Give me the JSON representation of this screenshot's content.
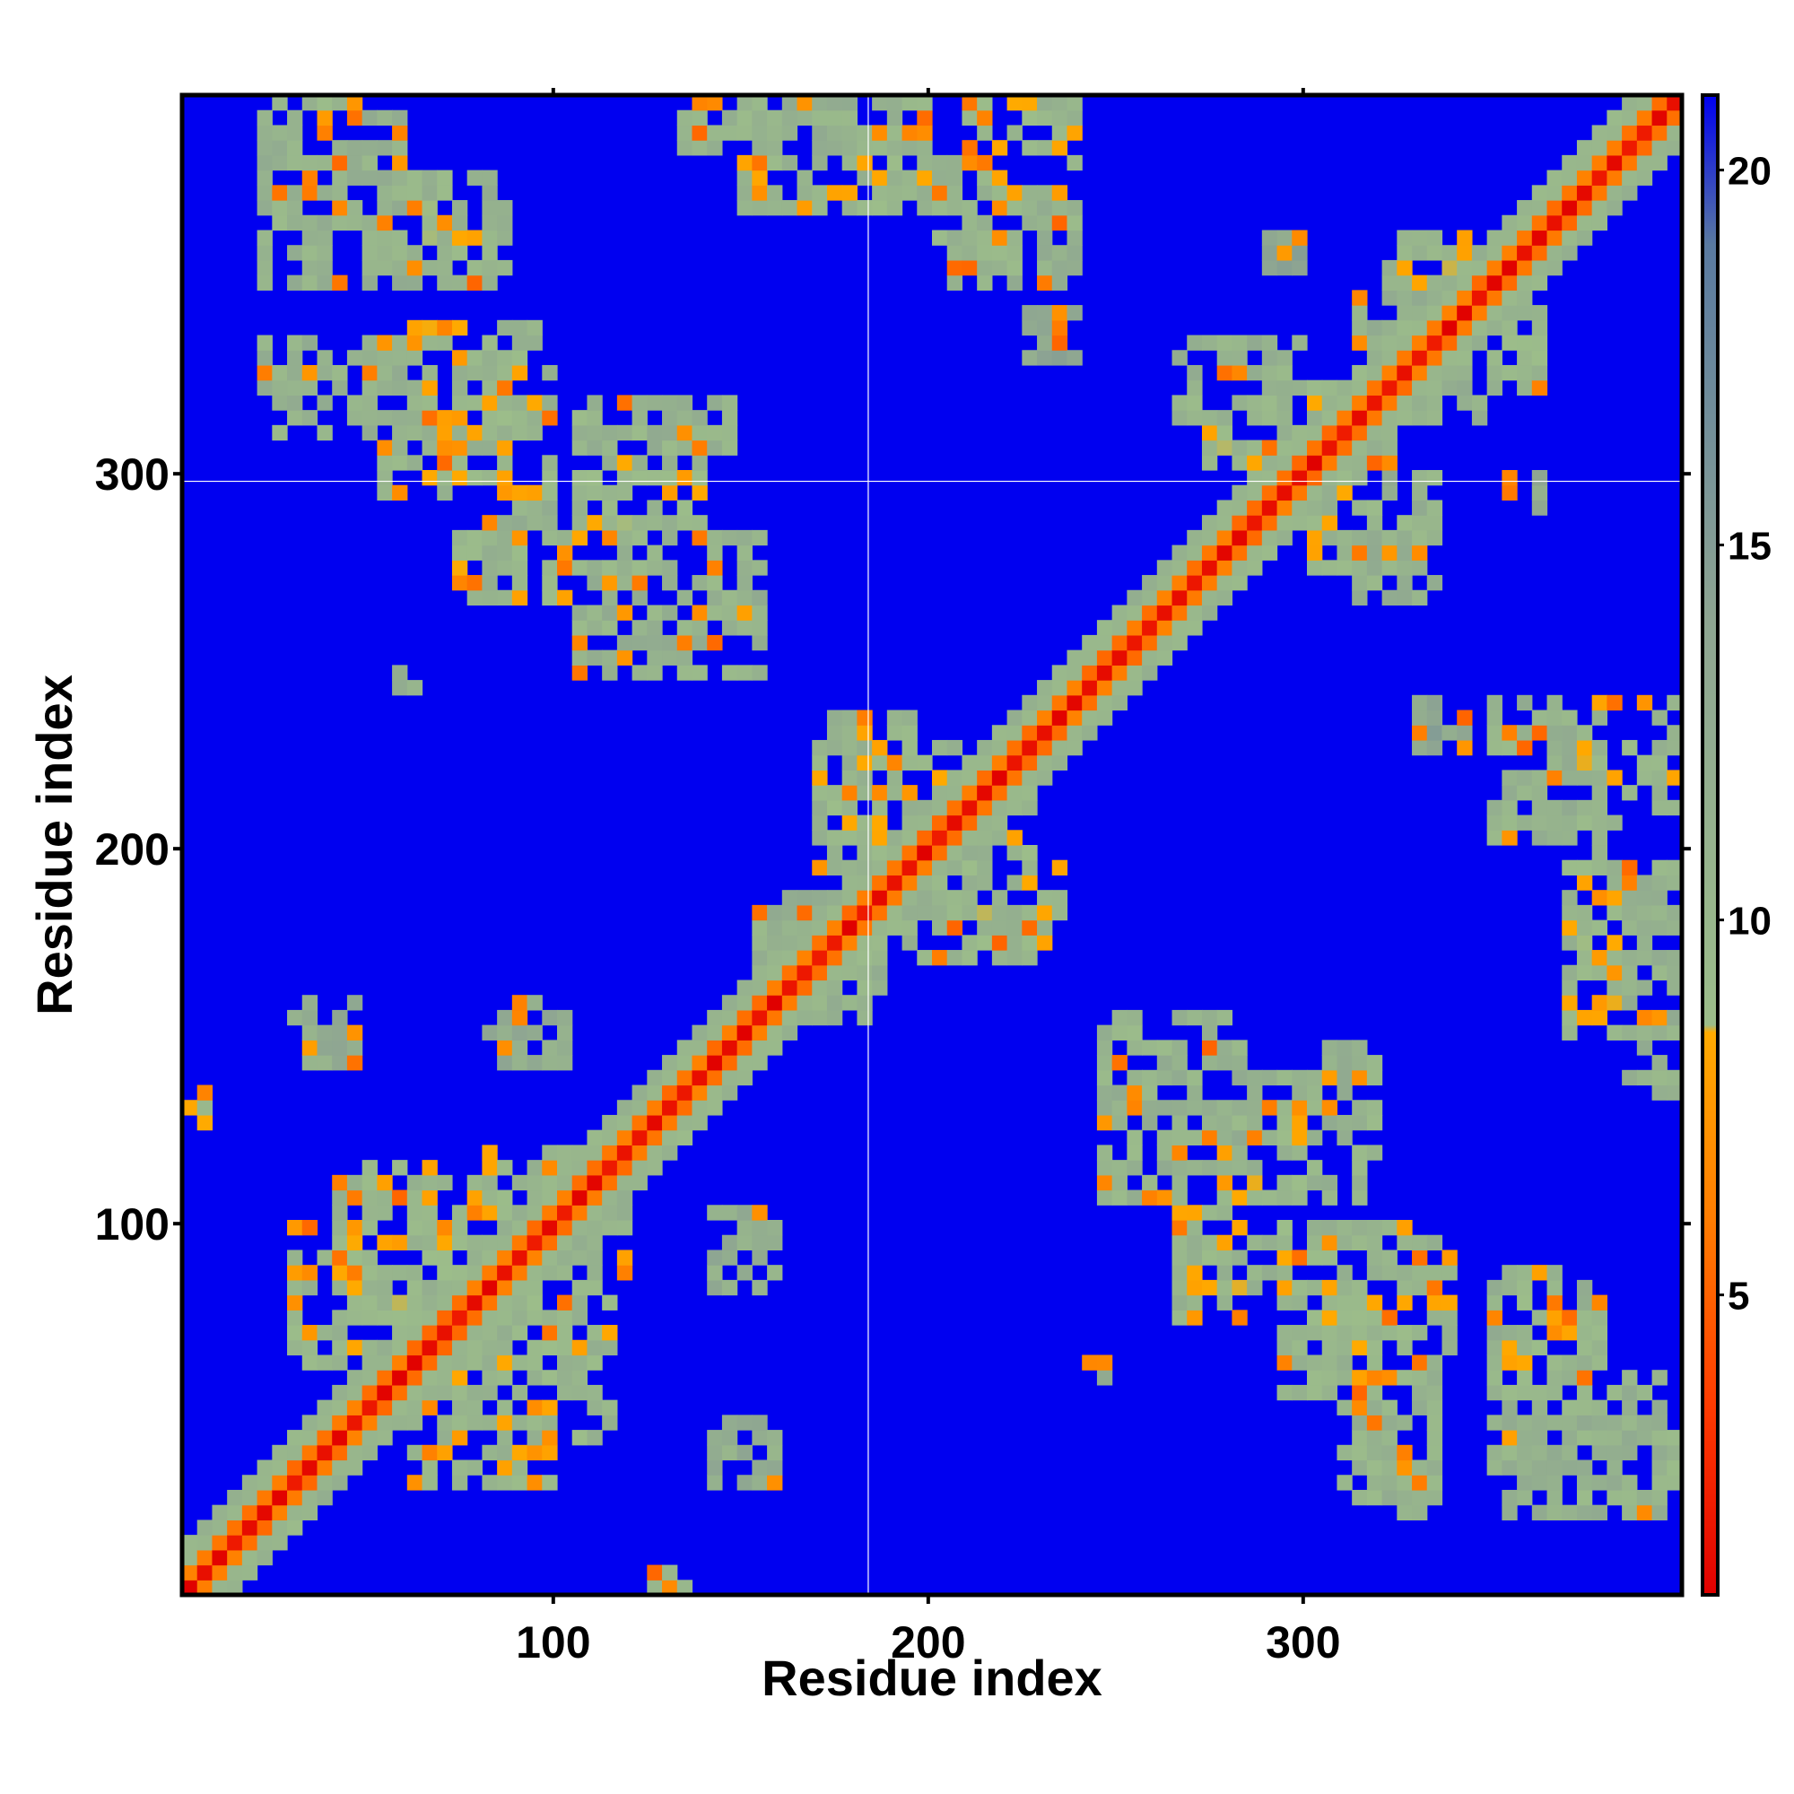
{
  "chart_data": {
    "type": "heatmap",
    "title": "",
    "xlabel": "Residue index",
    "ylabel": "Residue index",
    "xlim": [
      1,
      401
    ],
    "ylim": [
      1,
      401
    ],
    "xticks": [
      100,
      200,
      300
    ],
    "yticks": [
      100,
      200,
      300
    ],
    "xtick_labels": [
      "100",
      "200",
      "300"
    ],
    "ytick_labels": [
      "100",
      "200",
      "300"
    ],
    "reference_lines": {
      "x": 184,
      "y": 298
    },
    "colorbar": {
      "range": [
        1,
        21
      ],
      "ticks": [
        5,
        10,
        15,
        20
      ],
      "tick_labels": [
        "5",
        "10",
        "15",
        "20"
      ],
      "scale_stops": [
        {
          "value": 1,
          "color": "#e00000"
        },
        {
          "value": 3.5,
          "color": "#ff3a00"
        },
        {
          "value": 6,
          "color": "#ff7c00"
        },
        {
          "value": 8.5,
          "color": "#ffaa00"
        },
        {
          "value": 8.6,
          "color": "#9cbd8a"
        },
        {
          "value": 14,
          "color": "#8ea592"
        },
        {
          "value": 19,
          "color": "#5a7aa0"
        },
        {
          "value": 21,
          "color": "#0000f0"
        }
      ]
    },
    "background_value": 21,
    "background_color": "#0000f0",
    "diagonal_band_halfwidth": 8,
    "contact_regions": [
      {
        "i": [
          20,
          60
        ],
        "j": [
          350,
          395
        ],
        "value": 11
      },
      {
        "i": [
          58,
          90
        ],
        "j": [
          355,
          372
        ],
        "value": 10
      },
      {
        "i": [
          135,
          200
        ],
        "j": [
          385,
          400
        ],
        "value": 11
      },
      {
        "i": [
          210,
          240
        ],
        "j": [
          375,
          400
        ],
        "value": 10
      },
      {
        "i": [
          20,
          60
        ],
        "j": [
          320,
          335
        ],
        "value": 11
      },
      {
        "i": [
          55,
          100
        ],
        "j": [
          295,
          330
        ],
        "value": 10
      },
      {
        "i": [
          110,
          150
        ],
        "j": [
          305,
          320
        ],
        "value": 11
      },
      {
        "i": [
          75,
          110
        ],
        "j": [
          265,
          285
        ],
        "value": 10
      },
      {
        "i": [
          110,
          155
        ],
        "j": [
          265,
          285
        ],
        "value": 11
      },
      {
        "i": [
          170,
          215
        ],
        "j": [
          195,
          230
        ],
        "value": 10
      },
      {
        "i": [
          200,
          235
        ],
        "j": [
          175,
          195
        ],
        "value": 10
      },
      {
        "i": [
          155,
          190
        ],
        "j": [
          160,
          185
        ],
        "value": 11
      },
      {
        "i": [
          80,
          120
        ],
        "j": [
          100,
          120
        ],
        "value": 10
      },
      {
        "i": [
          30,
          70
        ],
        "j": [
          60,
          100
        ],
        "value": 10
      },
      {
        "i": [
          55,
          90
        ],
        "j": [
          45,
          70
        ],
        "value": 11
      },
      {
        "i": [
          85,
          115
        ],
        "j": [
          40,
          80
        ],
        "value": 10
      },
      {
        "i": [
          315,
          345
        ],
        "j": [
          320,
          350
        ],
        "value": 11
      },
      {
        "i": [
          340,
          365
        ],
        "j": [
          320,
          345
        ],
        "value": 10
      },
      {
        "i": [
          265,
          300
        ],
        "j": [
          315,
          335
        ],
        "value": 11
      },
      {
        "i": [
          300,
          325
        ],
        "j": [
          275,
          310
        ],
        "value": 10
      },
      {
        "i": [
          350,
          385
        ],
        "j": [
          200,
          240
        ],
        "value": 11
      },
      {
        "i": [
          370,
          400
        ],
        "j": [
          150,
          200
        ],
        "value": 10
      },
      {
        "i": [
          245,
          285
        ],
        "j": [
          105,
          155
        ],
        "value": 11
      },
      {
        "i": [
          285,
          315
        ],
        "j": [
          105,
          140
        ],
        "value": 10
      },
      {
        "i": [
          265,
          295
        ],
        "j": [
          80,
          100
        ],
        "value": 11
      },
      {
        "i": [
          300,
          340
        ],
        "j": [
          60,
          95
        ],
        "value": 10
      },
      {
        "i": [
          350,
          380
        ],
        "j": [
          60,
          85
        ],
        "value": 11
      },
      {
        "i": [
          355,
          400
        ],
        "j": [
          25,
          50
        ],
        "value": 10
      },
      {
        "i": [
          310,
          335
        ],
        "j": [
          25,
          55
        ],
        "value": 11
      },
      {
        "i": [
          30,
          50
        ],
        "j": [
          140,
          160
        ],
        "value": 12
      },
      {
        "i": [
          90,
          105
        ],
        "j": [
          140,
          160
        ],
        "value": 12
      },
      {
        "i": [
          140,
          160
        ],
        "j": [
          80,
          100
        ],
        "value": 12
      },
      {
        "i": [
          140,
          160
        ],
        "j": [
          30,
          50
        ],
        "value": 12
      },
      {
        "i": [
          1,
          10
        ],
        "j": [
          125,
          135
        ],
        "value": 9
      },
      {
        "i": [
          125,
          135
        ],
        "j": [
          1,
          10
        ],
        "value": 9
      },
      {
        "i": [
          56,
          66
        ],
        "j": [
          240,
          250
        ],
        "value": 11
      },
      {
        "i": [
          240,
          250
        ],
        "j": [
          56,
          66
        ],
        "value": 11
      },
      {
        "i": [
          330,
          345
        ],
        "j": [
          225,
          240
        ],
        "value": 13
      },
      {
        "i": [
          355,
          365
        ],
        "j": [
          290,
          300
        ],
        "value": 13
      }
    ]
  }
}
